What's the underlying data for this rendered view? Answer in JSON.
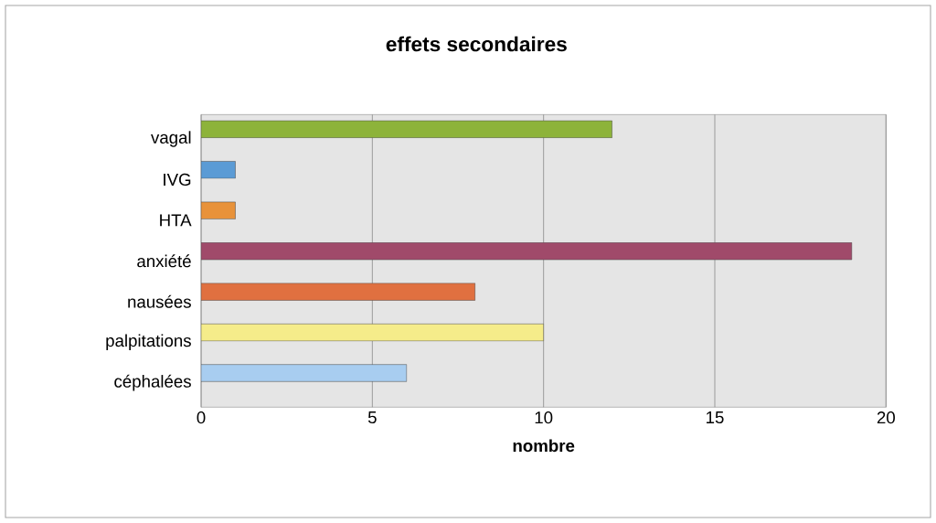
{
  "chart_data": {
    "type": "bar",
    "orientation": "horizontal",
    "title": "effets secondaires",
    "xlabel": "nombre",
    "categories": [
      "vagal",
      "IVG",
      "HTA",
      "anxiété",
      "nausées",
      "palpitations",
      "céphalées"
    ],
    "values": [
      12,
      1,
      1,
      19,
      8,
      10,
      6
    ],
    "colors": [
      "#8db33a",
      "#5b9bd5",
      "#e8923a",
      "#a04a6a",
      "#e07040",
      "#f5ec8a",
      "#a8cdf0"
    ],
    "xlim": [
      0,
      20
    ],
    "xticks": [
      0,
      5,
      10,
      15,
      20
    ],
    "grid": "x"
  }
}
